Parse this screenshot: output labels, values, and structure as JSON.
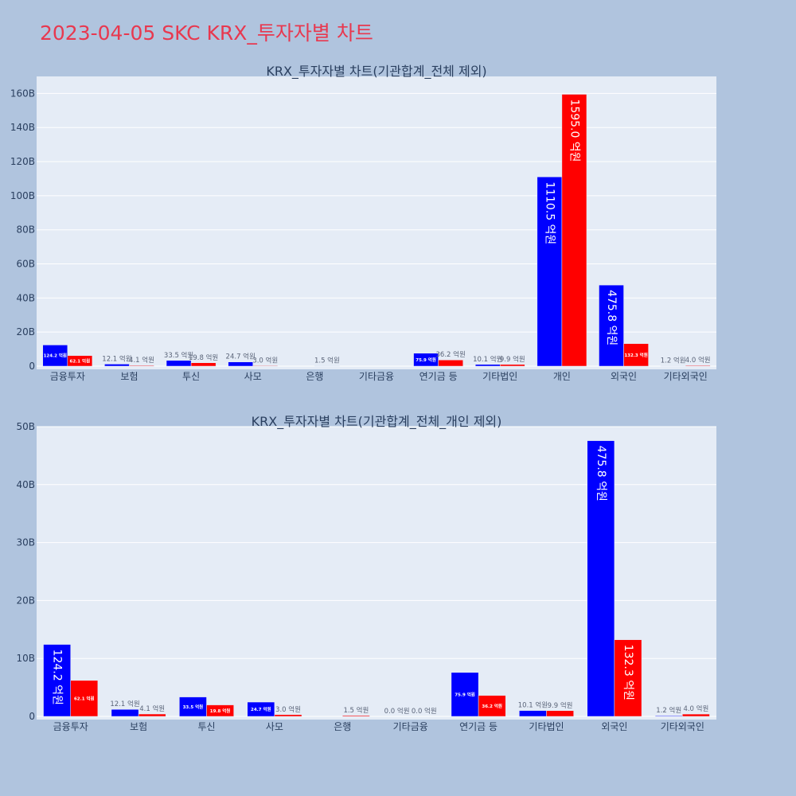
{
  "page_title": "2023-04-05 SKC KRX_투자자별 차트",
  "colors": {
    "page_bg": "#b0c4de",
    "plot_bg": "#e5ecf6",
    "title": "#e8384f",
    "buy": "#0000ff",
    "sell": "#ff0000",
    "text": "#2a3f5f"
  },
  "chart_data": [
    {
      "type": "bar",
      "title": "KRX_투자자별 차트(기관합계_전체 제외)",
      "categories": [
        "금융투자",
        "보험",
        "투신",
        "사모",
        "은행",
        "기타금융",
        "연기금 등",
        "기타법인",
        "개인",
        "외국인",
        "기타외국인"
      ],
      "series": [
        {
          "color": "#0000ff",
          "values": [
            124.2,
            12.1,
            33.5,
            24.7,
            null,
            null,
            75.9,
            10.1,
            1110.5,
            475.8,
            1.2
          ]
        },
        {
          "color": "#ff0000",
          "values": [
            62.1,
            4.1,
            19.8,
            3.0,
            1.5,
            null,
            36.2,
            9.9,
            1595.0,
            132.3,
            4.0
          ]
        }
      ],
      "value_unit": "억원",
      "label_suffix": " 억원",
      "yticks": [
        "0",
        "20B",
        "40B",
        "60B",
        "80B",
        "100B",
        "120B",
        "140B",
        "160B"
      ],
      "ylim": [
        0,
        1700
      ],
      "grid": true,
      "legend": false
    },
    {
      "type": "bar",
      "title": "KRX_투자자별 차트(기관합계_전체_개인 제외)",
      "categories": [
        "금융투자",
        "보험",
        "투신",
        "사모",
        "은행",
        "기타금융",
        "연기금 등",
        "기타법인",
        "외국인",
        "기타외국인"
      ],
      "series": [
        {
          "color": "#0000ff",
          "values": [
            124.2,
            12.1,
            33.5,
            24.7,
            null,
            0.0,
            75.9,
            10.1,
            475.8,
            1.2
          ]
        },
        {
          "color": "#ff0000",
          "values": [
            62.1,
            4.1,
            19.8,
            3.0,
            1.5,
            0.0,
            36.2,
            9.9,
            132.3,
            4.0
          ]
        }
      ],
      "value_unit": "억원",
      "label_suffix": " 억원",
      "yticks": [
        "0",
        "10B",
        "20B",
        "30B",
        "40B",
        "50B"
      ],
      "ylim": [
        0,
        500
      ],
      "grid": true,
      "legend": false
    }
  ]
}
